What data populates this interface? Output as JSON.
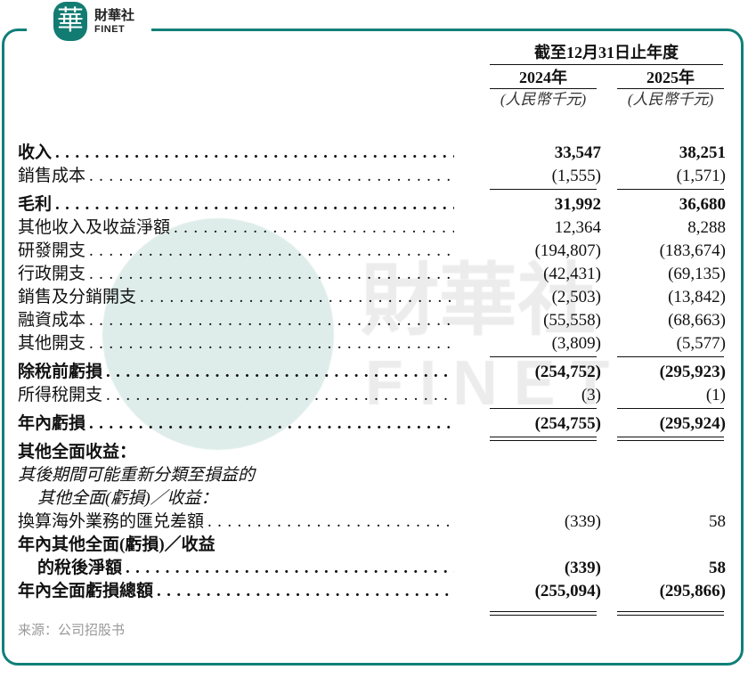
{
  "logo": {
    "cn": "財華社",
    "en": "FINET",
    "mark": "華"
  },
  "watermark": {
    "cn": "財華社",
    "en": "FINET"
  },
  "colors": {
    "frame": "#0f8078",
    "source_text": "#999999"
  },
  "header": {
    "period": "截至12月31日止年度",
    "years": [
      "2024年",
      "2025年"
    ],
    "units": [
      "(人民幣千元)",
      "(人民幣千元)"
    ]
  },
  "rows": [
    {
      "label": "收入",
      "v2024": "33,547",
      "v2025": "38,251",
      "bold": true
    },
    {
      "label": "銷售成本",
      "v2024": "(1,555)",
      "v2025": "(1,571)"
    },
    {
      "label": "毛利",
      "v2024": "31,992",
      "v2025": "36,680",
      "bold": true
    },
    {
      "label": "其他收入及收益淨額",
      "v2024": "12,364",
      "v2025": "8,288"
    },
    {
      "label": "研發開支",
      "v2024": "(194,807)",
      "v2025": "(183,674)"
    },
    {
      "label": "行政開支",
      "v2024": "(42,431)",
      "v2025": "(69,135)"
    },
    {
      "label": "銷售及分銷開支",
      "v2024": "(2,503)",
      "v2025": "(13,842)"
    },
    {
      "label": "融資成本",
      "v2024": "(55,558)",
      "v2025": "(68,663)"
    },
    {
      "label": "其他開支",
      "v2024": "(3,809)",
      "v2025": "(5,577)"
    },
    {
      "label": "除稅前虧損",
      "v2024": "(254,752)",
      "v2025": "(295,923)",
      "bold": true
    },
    {
      "label": "所得稅開支",
      "v2024": "(3)",
      "v2025": "(1)"
    },
    {
      "label": "年內虧損",
      "v2024": "(254,755)",
      "v2025": "(295,924)",
      "bold": true
    },
    {
      "label": "其他全面收益：",
      "bold": true
    },
    {
      "label": "其後期間可能重新分類至損益的",
      "italic": true
    },
    {
      "label": "其他全面(虧損)／收益：",
      "italic": true
    },
    {
      "label": "換算海外業務的匯兑差額",
      "v2024": "(339)",
      "v2025": "58"
    },
    {
      "label": "年內其他全面(虧損)／收益",
      "bold": true
    },
    {
      "label": "的稅後淨額",
      "v2024": "(339)",
      "v2025": "58",
      "bold": true
    },
    {
      "label": "年內全面虧損總額",
      "v2024": "(255,094)",
      "v2025": "(295,866)",
      "bold": true
    }
  ],
  "source": "来源：公司招股书"
}
